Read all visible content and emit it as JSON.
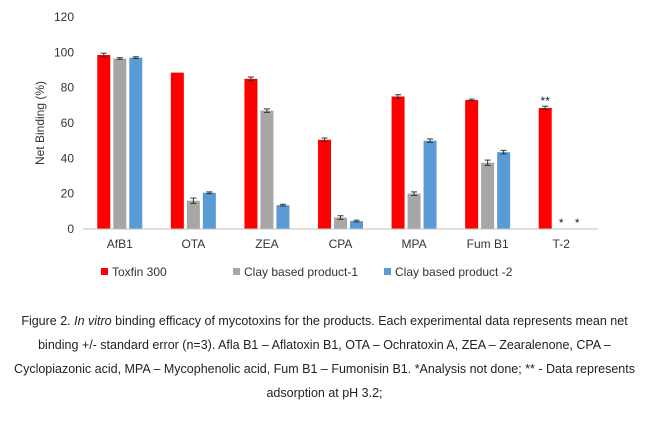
{
  "chart_data": {
    "type": "bar",
    "title": "",
    "xlabel": "",
    "ylabel": "Net Binding (%)",
    "ylim": [
      0,
      120
    ],
    "yticks": [
      0,
      20,
      40,
      60,
      80,
      100,
      120
    ],
    "grid": false,
    "legend_position": "bottom",
    "categories": [
      "AfB1",
      "OTA",
      "ZEA",
      "CPA",
      "MPA",
      "Fum B1",
      "T-2"
    ],
    "series": [
      {
        "name": "Toxfin 300",
        "color": "#ff0000",
        "values": [
          98.5,
          88.5,
          85,
          50.5,
          75,
          73,
          68.5
        ],
        "errors": [
          1,
          0,
          1,
          1,
          1,
          0.5,
          1
        ]
      },
      {
        "name": "Clay based product-1",
        "color": "#a6a6a6",
        "values": [
          96.5,
          16,
          67,
          6.5,
          20,
          37.5,
          null
        ],
        "errors": [
          0.5,
          1.5,
          1,
          1,
          1,
          1.5,
          0
        ]
      },
      {
        "name": "Clay based product -2",
        "color": "#5b9bd5",
        "values": [
          97,
          20.5,
          13.5,
          4.5,
          50,
          43.5,
          null
        ],
        "errors": [
          0.5,
          0.5,
          0.5,
          0.5,
          1,
          1,
          0
        ]
      }
    ],
    "annotations": [
      {
        "category": "T-2",
        "series": 0,
        "text": "**"
      },
      {
        "category": "T-2",
        "series": 1,
        "text": "*"
      },
      {
        "category": "T-2",
        "series": 2,
        "text": "*"
      }
    ]
  },
  "caption": {
    "prefix": "Figure 2. ",
    "italic": "In vitro",
    "rest": " binding efficacy of mycotoxins for the products. Each experimental data represents mean net binding +/- standard error (n=3). Afla B1 – Aflatoxin B1, OTA – Ochratoxin A, ZEA – Zearalenone, CPA – Cyclopiazonic acid, MPA – Mycophenolic acid, Fum B1 – Fumonisin B1. *Analysis not done; ** - Data represents adsorption at pH 3.2;"
  }
}
